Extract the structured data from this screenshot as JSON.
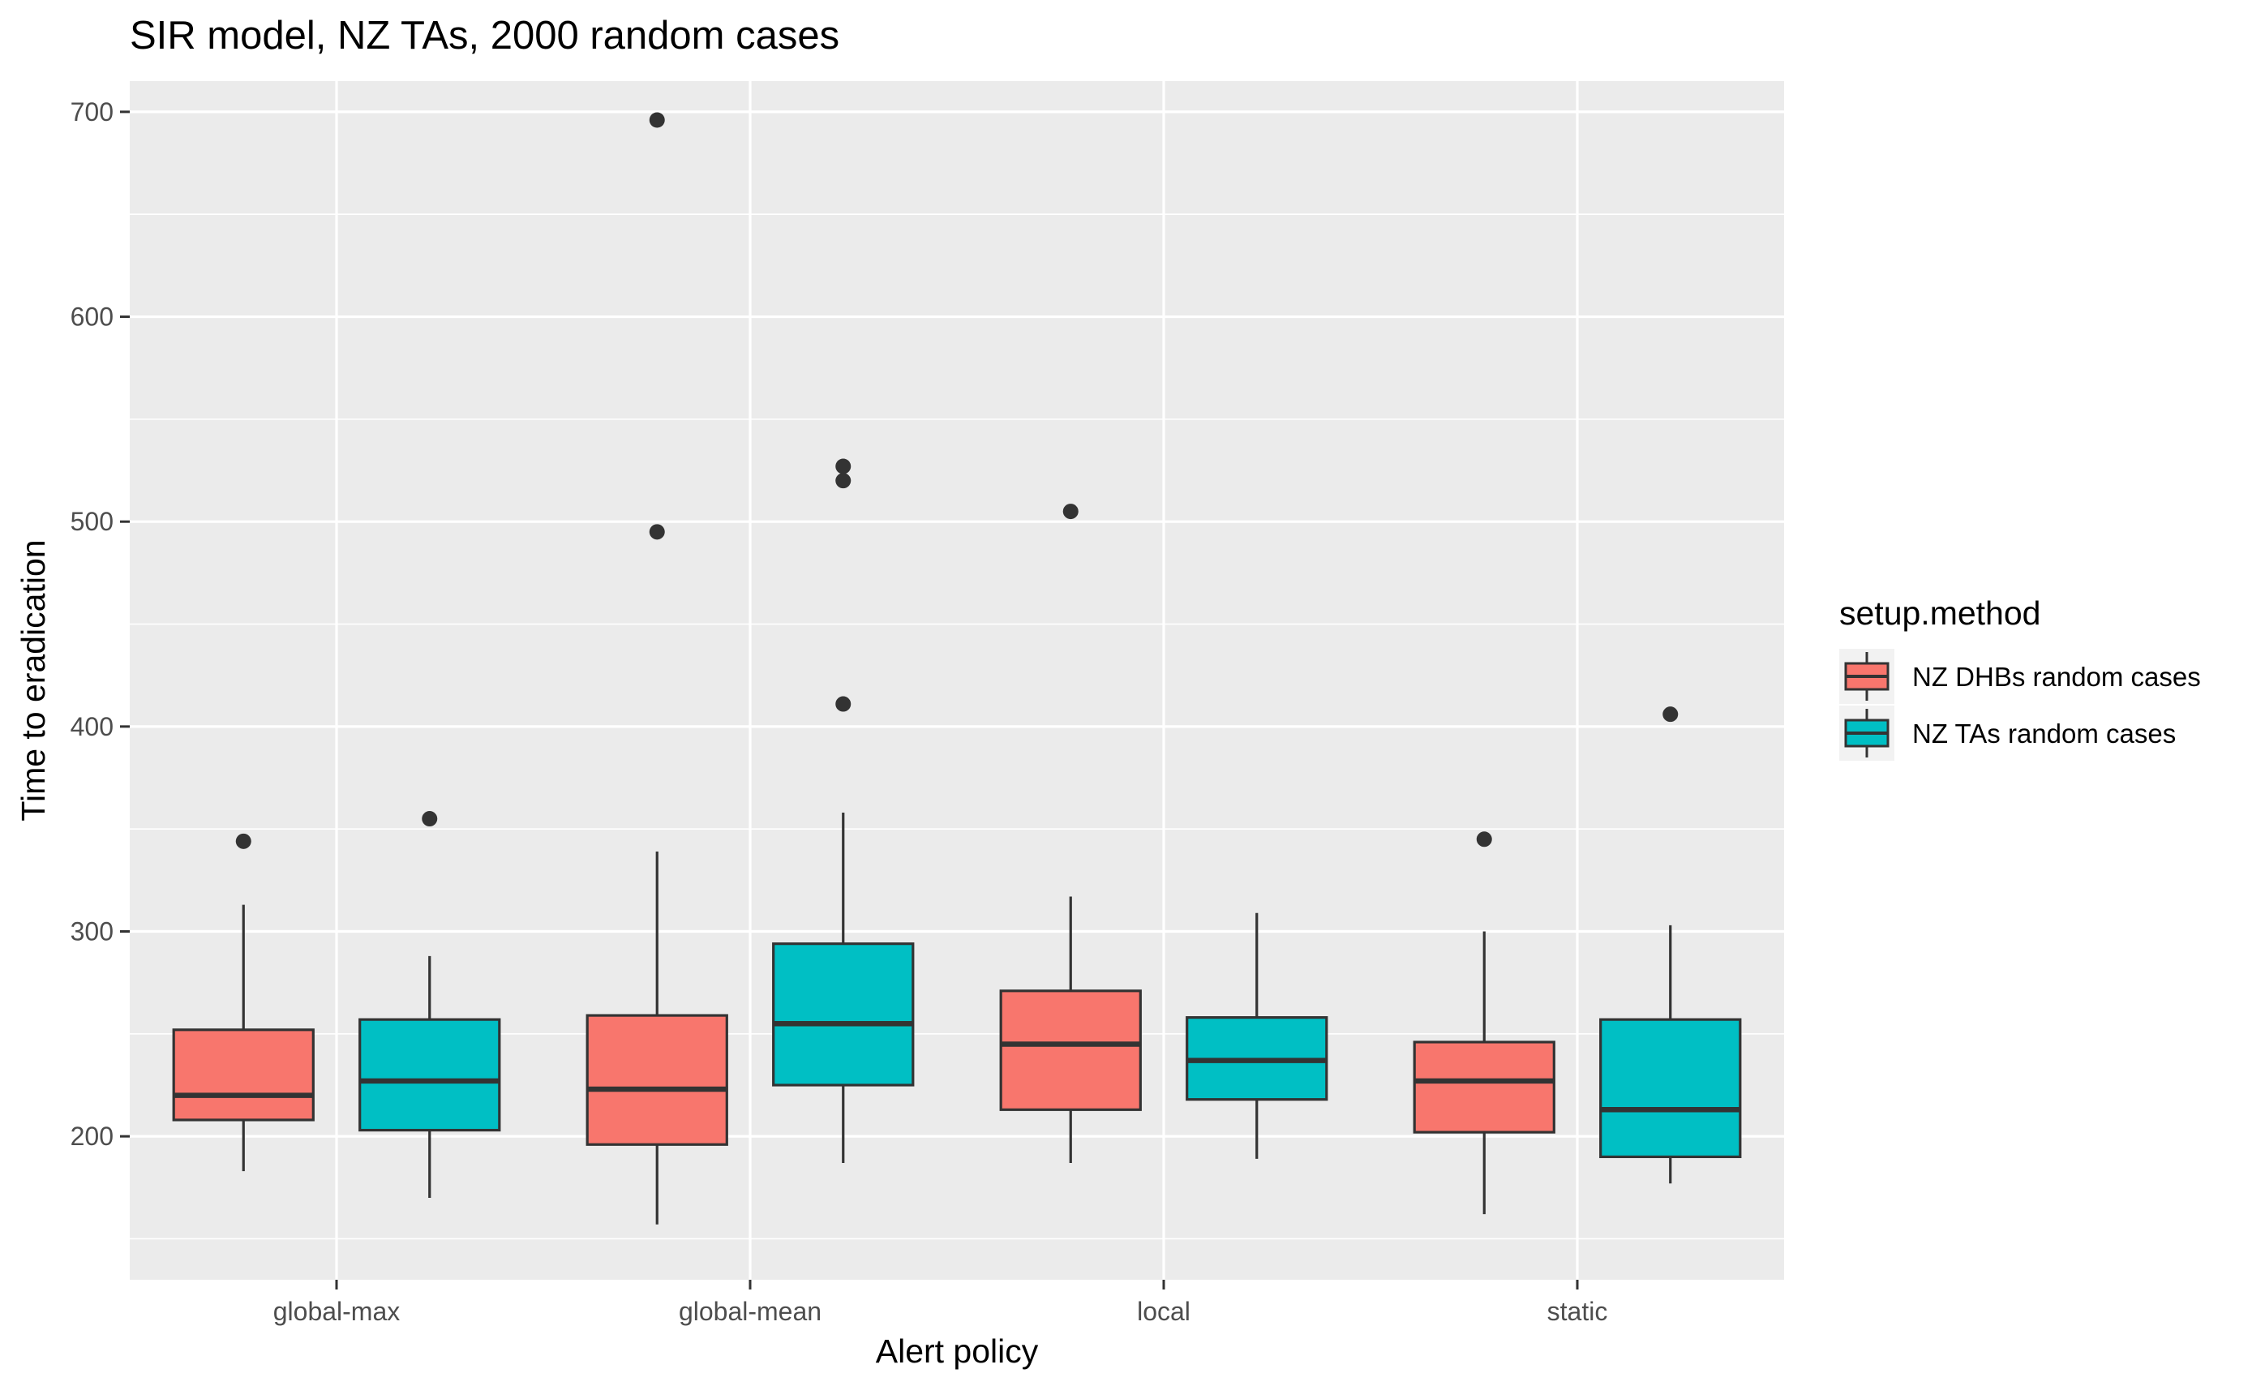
{
  "chart_data": {
    "type": "boxplot",
    "title": "SIR model, NZ TAs, 2000 random cases",
    "xlabel": "Alert policy",
    "ylabel": "Time to eradication",
    "categories": [
      "global-max",
      "global-mean",
      "local",
      "static"
    ],
    "ylim": [
      130,
      715
    ],
    "yticks": [
      200,
      300,
      400,
      500,
      600,
      700
    ],
    "grid": true,
    "legend": {
      "title": "setup.method",
      "position": "right"
    },
    "series": [
      {
        "name": "NZ DHBs random cases",
        "color": "#F8766D",
        "boxes": [
          {
            "whisker_low": 183,
            "q1": 208,
            "median": 220,
            "q3": 252,
            "whisker_high": 313,
            "outliers": [
              344
            ]
          },
          {
            "whisker_low": 157,
            "q1": 196,
            "median": 223,
            "q3": 259,
            "whisker_high": 339,
            "outliers": [
              495,
              696
            ]
          },
          {
            "whisker_low": 187,
            "q1": 213,
            "median": 245,
            "q3": 271,
            "whisker_high": 317,
            "outliers": [
              505
            ]
          },
          {
            "whisker_low": 162,
            "q1": 202,
            "median": 227,
            "q3": 246,
            "whisker_high": 300,
            "outliers": [
              345
            ]
          }
        ]
      },
      {
        "name": "NZ TAs random cases",
        "color": "#00BFC4",
        "boxes": [
          {
            "whisker_low": 170,
            "q1": 203,
            "median": 227,
            "q3": 257,
            "whisker_high": 288,
            "outliers": [
              355
            ]
          },
          {
            "whisker_low": 187,
            "q1": 225,
            "median": 255,
            "q3": 294,
            "whisker_high": 358,
            "outliers": [
              411,
              520,
              527
            ]
          },
          {
            "whisker_low": 189,
            "q1": 218,
            "median": 237,
            "q3": 258,
            "whisker_high": 309,
            "outliers": []
          },
          {
            "whisker_low": 177,
            "q1": 190,
            "median": 213,
            "q3": 257,
            "whisker_high": 303,
            "outliers": [
              406
            ]
          }
        ]
      }
    ]
  }
}
